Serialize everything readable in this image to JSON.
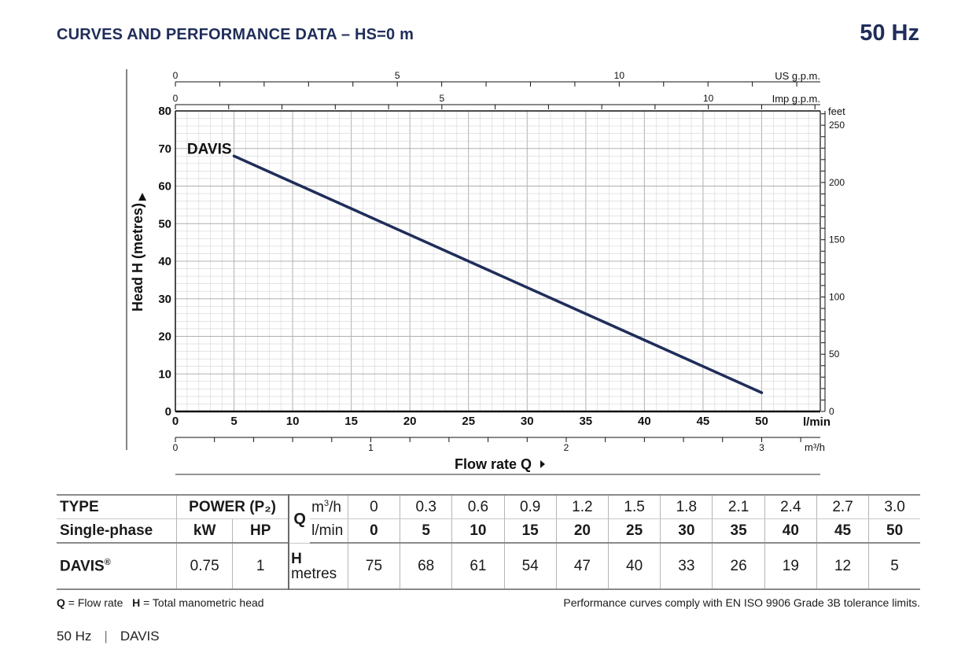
{
  "header": {
    "title": "CURVES AND PERFORMANCE DATA  –  HS=0 m",
    "hz_badge": "50 Hz"
  },
  "colors": {
    "curve": "#1f2d5a",
    "title": "#1f2d5a",
    "grid_major": "#b0b0b0",
    "grid_minor": "#d4d4d4"
  },
  "chart_data": {
    "type": "line",
    "title": "",
    "xlabel": "Flow rate Q",
    "ylabel": "Head H (metres)",
    "x_unit": "l/min",
    "xlim": [
      0,
      55
    ],
    "ylim": [
      0,
      80
    ],
    "x_ticks": [
      0,
      5,
      10,
      15,
      20,
      25,
      30,
      35,
      40,
      45,
      50
    ],
    "y_ticks": [
      0,
      10,
      20,
      30,
      40,
      50,
      60,
      70,
      80
    ],
    "grid": true,
    "series": [
      {
        "name": "DAVIS",
        "x": [
          5,
          10,
          15,
          20,
          25,
          30,
          35,
          40,
          45,
          50
        ],
        "y": [
          68,
          61,
          54,
          47,
          40,
          33,
          26,
          19,
          12,
          5
        ]
      }
    ],
    "secondary_axes": {
      "us_gpm": {
        "label": "US g.p.m.",
        "ticks": [
          0,
          5,
          10
        ],
        "xlim": [
          0,
          14.53
        ]
      },
      "imp_gpm": {
        "label": "Imp g.p.m.",
        "ticks": [
          0,
          5,
          10
        ],
        "xlim": [
          0,
          12.1
        ]
      },
      "m3h": {
        "label": "m³/h",
        "ticks": [
          0,
          1,
          2,
          3
        ],
        "xlim": [
          0,
          3.3
        ]
      },
      "feet": {
        "label": "feet",
        "ticks": [
          0,
          50,
          100,
          150,
          200,
          250
        ],
        "ylim": [
          0,
          262.5
        ]
      }
    }
  },
  "table": {
    "type_label": "TYPE",
    "single_phase_label": "Single-phase",
    "power_label": "POWER (P₂)",
    "kw_label": "kW",
    "hp_label": "HP",
    "q_label": "Q",
    "m3h_unit_base": "m",
    "m3h_unit_sup": "3",
    "m3h_unit_tail": "/h",
    "lmin_unit": "l/min",
    "h_label": "H",
    "h_unit": "metres",
    "m3h_values": [
      "0",
      "0.3",
      "0.6",
      "0.9",
      "1.2",
      "1.5",
      "1.8",
      "2.1",
      "2.4",
      "2.7",
      "3.0"
    ],
    "lmin_values": [
      "0",
      "5",
      "10",
      "15",
      "20",
      "25",
      "30",
      "35",
      "40",
      "45",
      "50"
    ],
    "rows": [
      {
        "name": "DAVIS",
        "reg": "®",
        "kw": "0.75",
        "hp": "1",
        "h_values": [
          "75",
          "68",
          "61",
          "54",
          "47",
          "40",
          "33",
          "26",
          "19",
          "12",
          "5"
        ]
      }
    ]
  },
  "legend": {
    "q_symbol": "Q",
    "q_text": " = Flow rate",
    "h_symbol": "H",
    "h_text": " = Total manometric head",
    "compliance": "Performance curves comply with EN ISO 9906 Grade 3B tolerance limits."
  },
  "footer": {
    "hz": "50 Hz",
    "separator": "|",
    "model": "DAVIS"
  }
}
